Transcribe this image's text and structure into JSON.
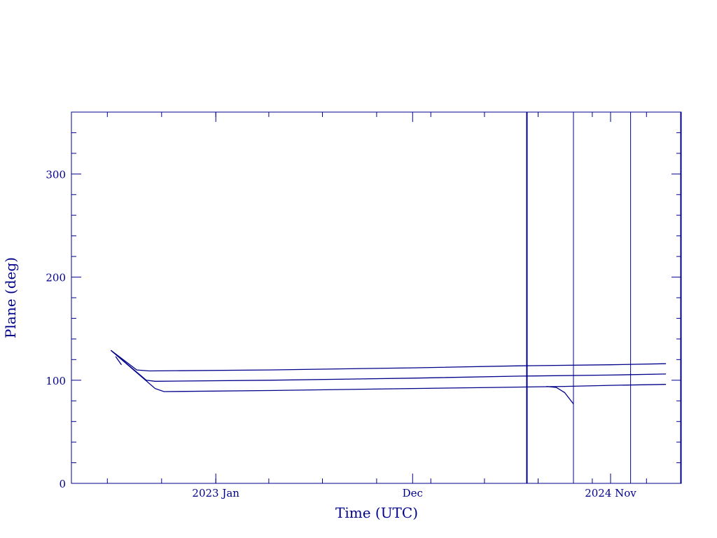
{
  "chart_data": {
    "type": "line",
    "title": "",
    "xlabel": "Time (UTC)",
    "ylabel": "Plane (deg)",
    "ylim": [
      0,
      360
    ],
    "y_ticks": [
      0,
      100,
      200,
      300
    ],
    "x_tick_labels": [
      "2023 Jan",
      "Dec",
      "2024 Nov"
    ],
    "x_tick_dates": [
      "2023-01-01",
      "2023-12-01",
      "2024-11-01"
    ],
    "xlim": [
      "2022-05-01",
      "2025-03-01"
    ],
    "grid": false,
    "series": [
      {
        "values": [
          {
            "x": "2022-07-07",
            "y": 129
          },
          {
            "x": "2022-08-20",
            "y": 110
          },
          {
            "x": "2022-09-10",
            "y": 109
          },
          {
            "x": "2023-04-01",
            "y": 110
          },
          {
            "x": "2023-12-01",
            "y": 112
          },
          {
            "x": "2024-06-01",
            "y": 114
          },
          {
            "x": "2024-11-01",
            "y": 115
          },
          {
            "x": "2025-02-03",
            "y": 116
          }
        ]
      },
      {
        "values": [
          {
            "x": "2022-07-07",
            "y": 129
          },
          {
            "x": "2022-09-05",
            "y": 100
          },
          {
            "x": "2022-09-20",
            "y": 99
          },
          {
            "x": "2023-04-01",
            "y": 100
          },
          {
            "x": "2023-12-01",
            "y": 102
          },
          {
            "x": "2024-06-01",
            "y": 104
          },
          {
            "x": "2024-11-01",
            "y": 105
          },
          {
            "x": "2025-02-03",
            "y": 106
          }
        ]
      },
      {
        "values": [
          {
            "x": "2022-07-07",
            "y": 129
          },
          {
            "x": "2022-09-20",
            "y": 92
          },
          {
            "x": "2022-10-05",
            "y": 89
          },
          {
            "x": "2023-04-01",
            "y": 90
          },
          {
            "x": "2023-12-01",
            "y": 92
          },
          {
            "x": "2024-04-15",
            "y": 93
          },
          {
            "x": "2024-08-15",
            "y": 94
          },
          {
            "x": "2024-11-01",
            "y": 95
          },
          {
            "x": "2025-02-03",
            "y": 96
          }
        ]
      },
      {
        "values": [
          {
            "x": "2024-07-15",
            "y": 94
          },
          {
            "x": "2024-08-01",
            "y": 93
          },
          {
            "x": "2024-08-15",
            "y": 88
          },
          {
            "x": "2024-08-30",
            "y": 77
          }
        ]
      },
      {
        "values": [
          {
            "x": "2022-07-15",
            "y": 123
          },
          {
            "x": "2022-07-25",
            "y": 115
          }
        ]
      }
    ],
    "vertical_lines": [
      "2024-06-12",
      "2024-08-30",
      "2024-12-05",
      "2025-03-10"
    ]
  },
  "style": {
    "color": "#00008b",
    "background": "#ffffff"
  }
}
